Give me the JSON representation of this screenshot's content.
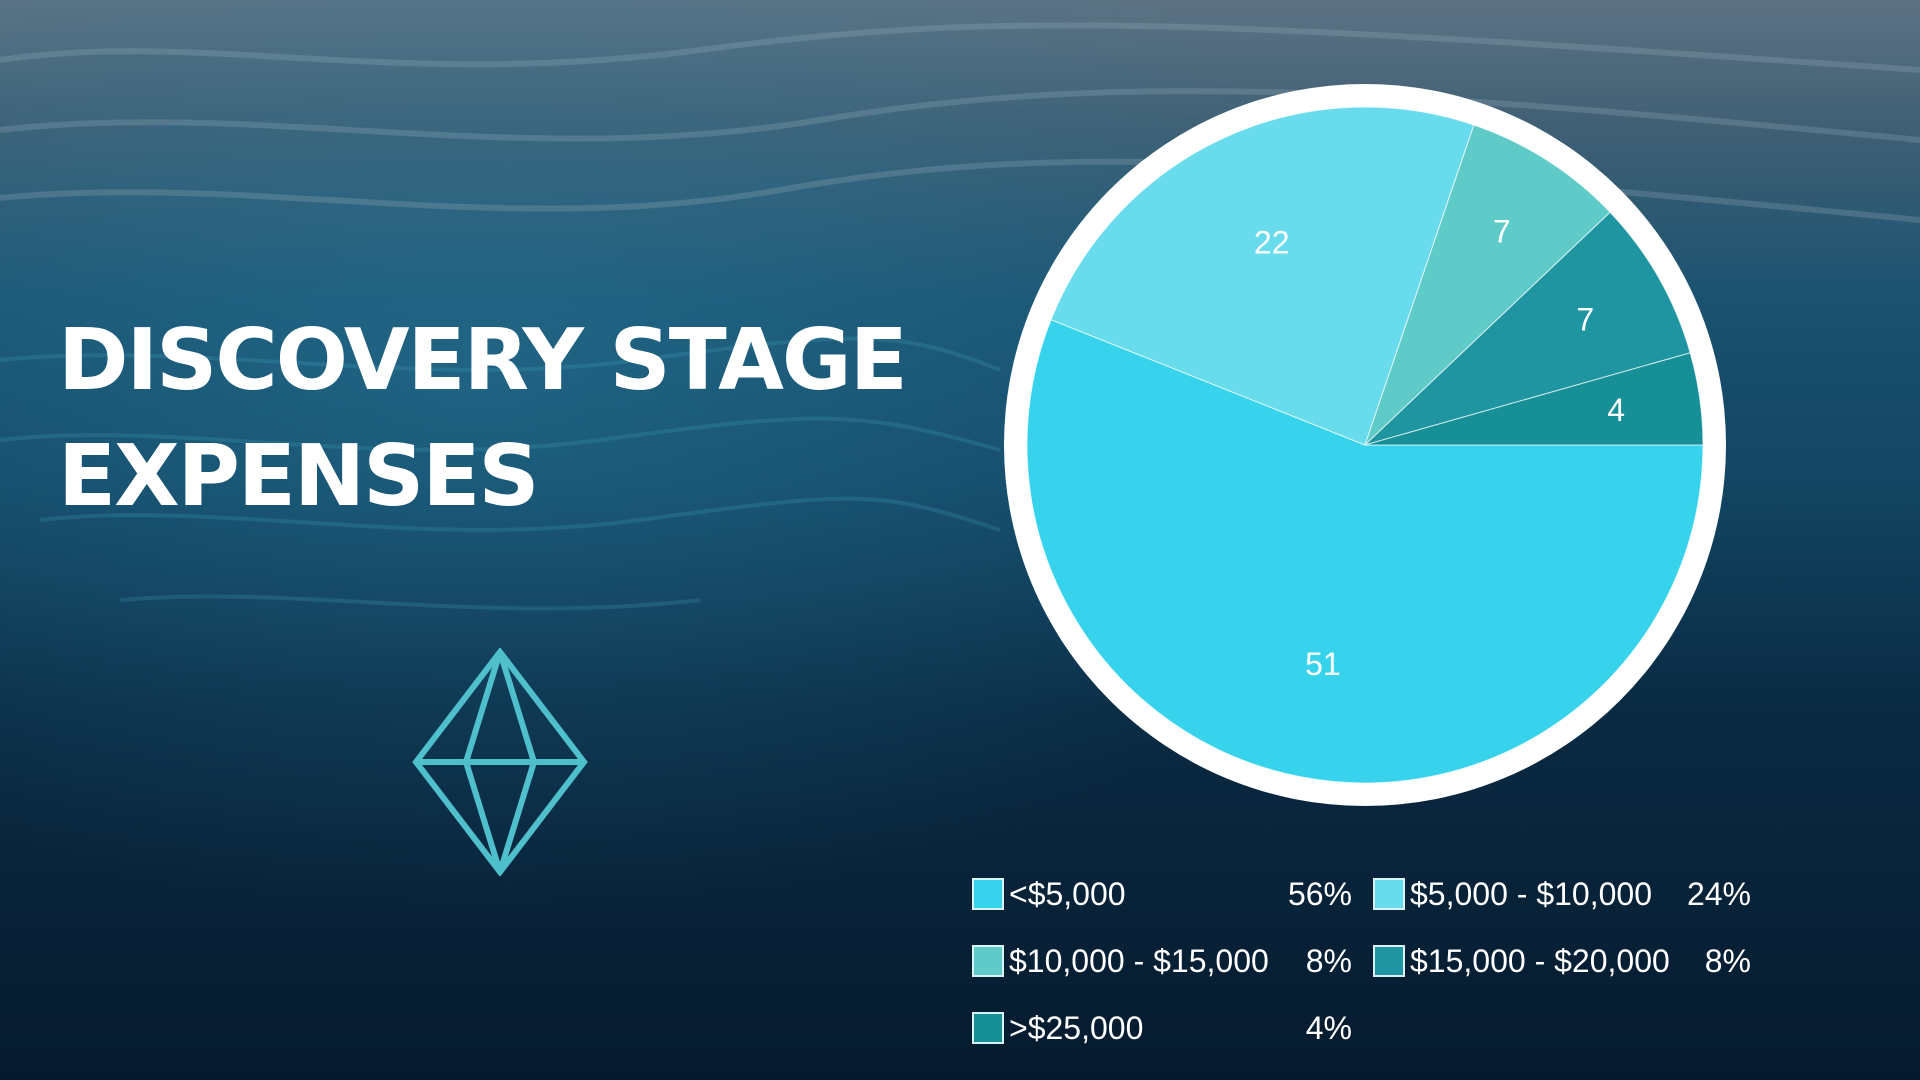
{
  "slide": {
    "title_lines": [
      "DISCOVERY STAGE",
      "EXPENSES"
    ]
  },
  "colors": {
    "ring": "#ffffff",
    "diamond": "#4fbfcc",
    "background_top": "#5d7384",
    "background_mid": "#134a66",
    "background_bottom": "#061a2d"
  },
  "icons": {
    "decoration": "diamond-icon"
  },
  "chart_data": {
    "type": "pie",
    "categories": [
      "<$5,000",
      "$5,000 - $10,000",
      "$10,000 - $15,000",
      "$15,000 - $20,000",
      ">$25,000"
    ],
    "values": [
      51,
      22,
      7,
      7,
      4
    ],
    "data_labels": [
      "51",
      "22",
      "7",
      "7",
      "4"
    ],
    "percentages": [
      "56%",
      "24%",
      "8%",
      "8%",
      "4%"
    ],
    "colors": [
      "#37d3ec",
      "#68dbec",
      "#5ecbc9",
      "#1e95a1",
      "#168f97"
    ],
    "legend_placement": "bottom"
  }
}
